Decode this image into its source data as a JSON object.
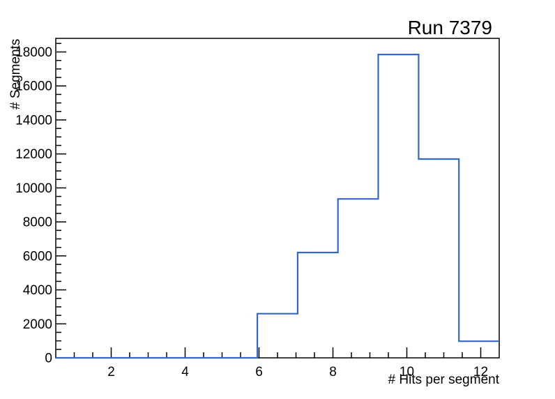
{
  "chart_data": {
    "type": "line",
    "subtype": "step-histogram",
    "title": "Run 7379",
    "xlabel": "# Hits per segment",
    "ylabel": "# Segments",
    "xlim": [
      0.5,
      12.5
    ],
    "ylim": [
      0,
      18800
    ],
    "bin_edges": [
      0.5,
      1.591,
      2.682,
      3.773,
      4.864,
      5.955,
      7.045,
      8.136,
      9.227,
      10.318,
      11.409,
      12.5
    ],
    "counts": [
      0,
      0,
      0,
      0,
      0,
      2600,
      6200,
      9350,
      17850,
      11700,
      975
    ],
    "x_major_ticks": [
      2,
      4,
      6,
      8,
      10,
      12
    ],
    "x_tick_labels": [
      "2",
      "4",
      "6",
      "8",
      "10",
      "12"
    ],
    "x_minor_step": 0.5,
    "y_major_ticks": [
      0,
      2000,
      4000,
      6000,
      8000,
      10000,
      12000,
      14000,
      16000,
      18000
    ],
    "y_tick_labels": [
      "0",
      "2000",
      "4000",
      "6000",
      "8000",
      "10000",
      "12000",
      "14000",
      "16000",
      "18000"
    ],
    "y_minor_step": 500,
    "grid": false,
    "legend_position": "none",
    "line_color": "#3866c8",
    "axis_color": "#000000",
    "background_color": "#ffffff"
  }
}
